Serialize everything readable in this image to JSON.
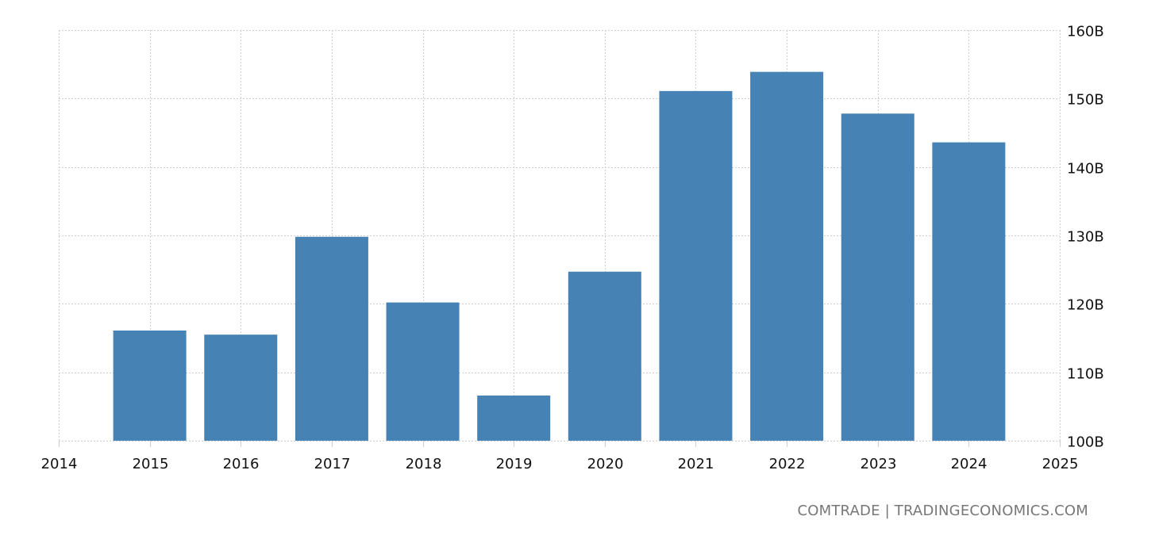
{
  "chart_data": {
    "type": "bar",
    "title": "",
    "xlabel": "",
    "ylabel": "",
    "categories": [
      "2015",
      "2016",
      "2017",
      "2018",
      "2019",
      "2020",
      "2021",
      "2022",
      "2023",
      "2024"
    ],
    "values": [
      116.1,
      115.5,
      129.8,
      120.2,
      106.6,
      124.7,
      151.1,
      153.9,
      147.8,
      143.6
    ],
    "unit": "B",
    "ylim": [
      100,
      160
    ],
    "y_ticks": [
      "100B",
      "110B",
      "120B",
      "130B",
      "140B",
      "150B",
      "160B"
    ],
    "x_ticks": [
      "2014",
      "2015",
      "2016",
      "2017",
      "2018",
      "2019",
      "2020",
      "2021",
      "2022",
      "2023",
      "2024",
      "2025"
    ],
    "grid": true,
    "legend": null,
    "bar_color": "#4682b4"
  },
  "source_label": "COMTRADE | TRADINGECONOMICS.COM"
}
